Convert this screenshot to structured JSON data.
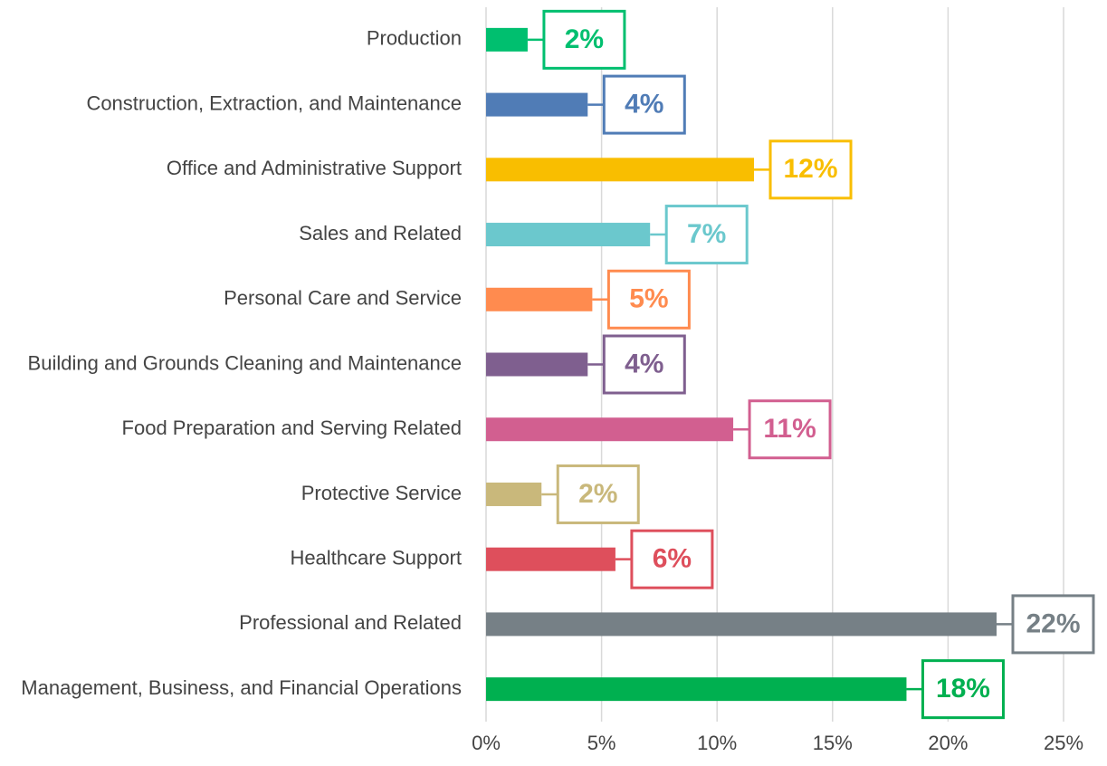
{
  "chart_data": {
    "type": "barh",
    "categories": [
      "Production",
      "Construction, Extraction, and Maintenance",
      "Office and Administrative Support",
      "Sales and Related",
      "Personal Care and Service",
      "Building and Grounds Cleaning and Maintenance",
      "Food Preparation and Serving Related",
      "Protective Service",
      "Healthcare Support",
      "Professional and Related",
      "Management, Business, and Financial Operations"
    ],
    "values": [
      1.8,
      4.4,
      11.6,
      7.1,
      4.6,
      4.4,
      10.7,
      2.4,
      5.6,
      22.1,
      18.2
    ],
    "value_labels": [
      "2%",
      "4%",
      "12%",
      "7%",
      "5%",
      "4%",
      "11%",
      "2%",
      "6%",
      "22%",
      "18%"
    ],
    "colors": [
      "#00bf6f",
      "#507cb6",
      "#f9be00",
      "#6bc8cd",
      "#ff8b4f",
      "#7f5f8f",
      "#d25f90",
      "#c9b87b",
      "#de4f5c",
      "#768086",
      "#00b050"
    ],
    "xlim": [
      0,
      25
    ],
    "xticks": [
      {
        "value": 0,
        "label": "0%"
      },
      {
        "value": 5,
        "label": "5%"
      },
      {
        "value": 10,
        "label": "10%"
      },
      {
        "value": 15,
        "label": "15%"
      },
      {
        "value": 20,
        "label": "20%"
      },
      {
        "value": 25,
        "label": "25%"
      }
    ],
    "grid": true
  }
}
